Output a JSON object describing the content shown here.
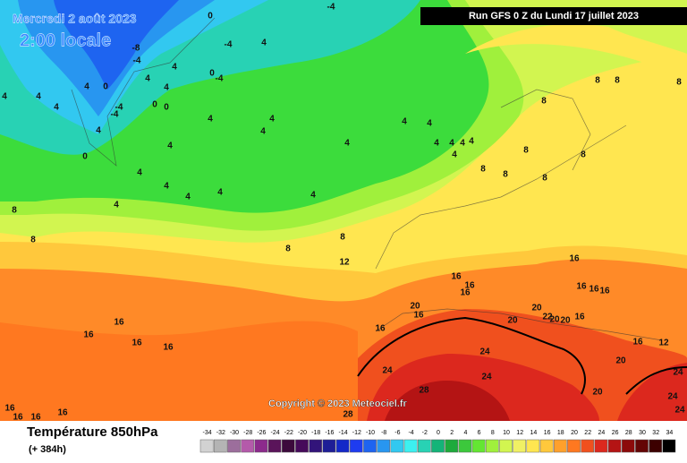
{
  "header": {
    "date": "Mercredi 2 août 2023",
    "time": "2:00 locale",
    "run": "Run GFS 0 Z du Lundi 17 juillet 2023"
  },
  "copyright": "Copyright © 2023 Meteociel.fr",
  "footer": {
    "title": "Température 850hPa",
    "lead": "(+ 384h)"
  },
  "scale": {
    "values": [
      -34,
      -32,
      -30,
      -28,
      -26,
      -24,
      -22,
      -20,
      -18,
      -16,
      -14,
      -12,
      -10,
      -8,
      -6,
      -4,
      -2,
      0,
      2,
      4,
      6,
      8,
      10,
      12,
      14,
      16,
      18,
      20,
      22,
      24,
      26,
      28,
      30,
      32,
      34
    ],
    "colors": [
      "#d2d2d2",
      "#b4b4b4",
      "#9c6e9c",
      "#b45aaa",
      "#8c2a8c",
      "#5a145a",
      "#3c0a3c",
      "#460a5a",
      "#32147a",
      "#1e1e96",
      "#1428c8",
      "#1e3cf0",
      "#1e64f0",
      "#2896f0",
      "#32c8f0",
      "#3cf0f0",
      "#28d2b4",
      "#14b478",
      "#1eaa3c",
      "#3cc83c",
      "#64e632",
      "#a0f03c",
      "#d2f550",
      "#f0f064",
      "#ffe650",
      "#ffc83c",
      "#ffa02c",
      "#ff7820",
      "#f0501e",
      "#dc281e",
      "#b41414",
      "#8c0a0a",
      "#640505",
      "#3c0000",
      "#000000"
    ]
  },
  "contour_labels": [
    0,
    -4,
    -4,
    4,
    -8,
    -4,
    4,
    0,
    -4,
    4,
    4,
    4,
    4,
    4,
    0,
    4,
    -4,
    -4,
    0,
    0,
    4,
    0,
    4,
    4,
    4,
    4,
    4,
    4,
    4,
    4,
    4,
    4,
    4,
    4,
    8,
    8,
    8,
    8,
    8,
    8,
    8,
    8,
    8,
    4,
    4,
    4,
    4,
    4,
    4,
    8,
    8,
    8,
    8,
    12,
    16,
    16,
    16,
    16,
    16,
    16,
    16,
    20,
    16,
    20,
    20,
    22,
    20,
    20,
    16,
    16,
    16,
    16,
    16,
    16,
    16,
    12,
    24,
    24,
    24,
    20,
    28,
    20,
    24,
    24,
    24,
    28,
    16,
    16,
    16,
    16
  ]
}
